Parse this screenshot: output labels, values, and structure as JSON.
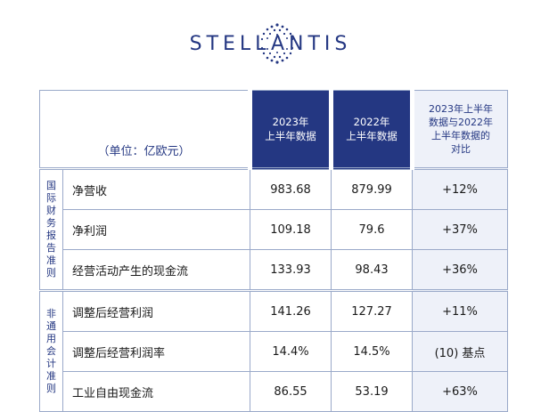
{
  "brand": {
    "name": "STELLANTIS",
    "color": "#243782"
  },
  "table": {
    "unit_label": "（单位：亿欧元）",
    "columns": [
      {
        "line1": "2023年",
        "line2": "上半年数据"
      },
      {
        "line1": "2022年",
        "line2": "上半年数据"
      },
      {
        "line1": "2023年上半年",
        "line2": "数据与2022年",
        "line3": "上半年数据的",
        "line4": "对比"
      }
    ],
    "groups": [
      {
        "side_label": "国际财务报告准则",
        "rows": [
          {
            "label": "净营收",
            "y2023": "983.68",
            "y2022": "879.99",
            "cmp": "+12%"
          },
          {
            "label": "净利润",
            "y2023": "109.18",
            "y2022": "79.6",
            "cmp": "+37%"
          },
          {
            "label": "经营活动产生的现金流",
            "y2023": "133.93",
            "y2022": "98.43",
            "cmp": "+36%"
          }
        ]
      },
      {
        "side_label": "非通用会计准则",
        "rows": [
          {
            "label": "调整后经营利润",
            "y2023": "141.26",
            "y2022": "127.27",
            "cmp": "+11%"
          },
          {
            "label": "调整后经营利润率",
            "y2023": "14.4%",
            "y2022": "14.5%",
            "cmp": "(10) 基点"
          },
          {
            "label": "工业自由现金流",
            "y2023": "86.55",
            "y2022": "53.19",
            "cmp": "+63%"
          }
        ]
      }
    ]
  }
}
